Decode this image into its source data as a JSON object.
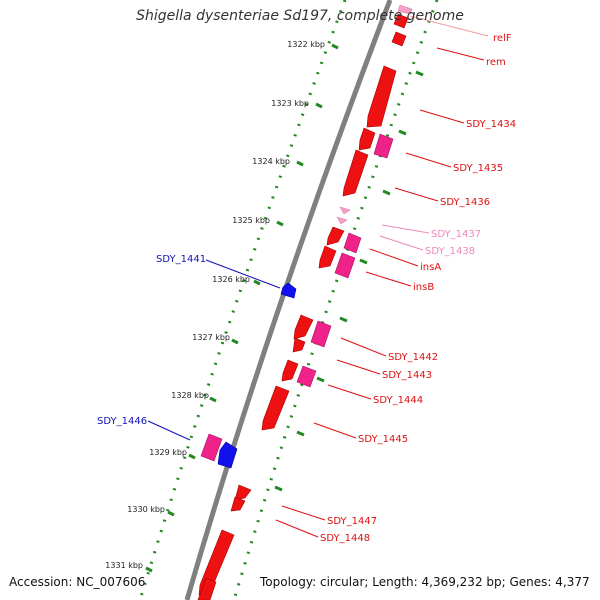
{
  "title": "Shigella dysenteriae Sd197, complete genome",
  "accession": "Accession: NC_007606",
  "topology": "Topology: circular; Length: 4,369,232 bp; Genes: 4,377",
  "scale_labels": [
    "1322 kbp",
    "1323 kbp",
    "1324 kbp",
    "1325 kbp",
    "1326 kbp",
    "1327 kbp",
    "1328 kbp",
    "1329 kbp",
    "1330 kbp",
    "1331 kbp"
  ],
  "gene_labels": [
    {
      "text": "relF",
      "color": "#dd1111"
    },
    {
      "text": "rem",
      "color": "#dd1111"
    },
    {
      "text": "SDY_1434",
      "color": "#dd1111"
    },
    {
      "text": "SDY_1435",
      "color": "#dd1111"
    },
    {
      "text": "SDY_1436",
      "color": "#dd1111"
    },
    {
      "text": "SDY_1437",
      "color": "#ee88bb"
    },
    {
      "text": "SDY_1438",
      "color": "#ee88bb"
    },
    {
      "text": "insA",
      "color": "#dd1111"
    },
    {
      "text": "insB",
      "color": "#dd1111"
    },
    {
      "text": "SDY_1442",
      "color": "#dd1111"
    },
    {
      "text": "SDY_1443",
      "color": "#dd1111"
    },
    {
      "text": "SDY_1444",
      "color": "#dd1111"
    },
    {
      "text": "SDY_1445",
      "color": "#dd1111"
    },
    {
      "text": "SDY_1447",
      "color": "#dd1111"
    },
    {
      "text": "SDY_1448",
      "color": "#dd1111"
    },
    {
      "text": "SDY_1441",
      "color": "#1111bb"
    },
    {
      "text": "SDY_1446",
      "color": "#1111bb"
    }
  ],
  "colors": {
    "backbone": "#808080",
    "scale_dots": "#228822",
    "forward_cds": "#ee1111",
    "pink_cds": "#ee2288",
    "light_pink_cds": "#f5a0c8",
    "reverse_cds": "#1111ee"
  }
}
